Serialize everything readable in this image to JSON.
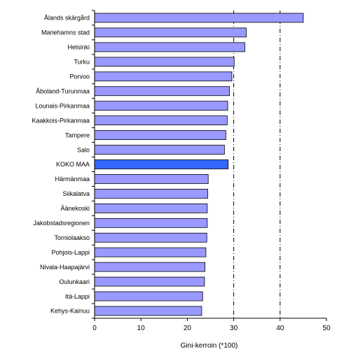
{
  "chart_data": {
    "type": "bar",
    "orientation": "horizontal",
    "categories": [
      "Ålands skärgård",
      "Mariehamns stad",
      "Helsinki",
      "Turku",
      "Porvoo",
      "Åboland-Turunmaa",
      "Lounais-Pirkanmaa",
      "Kaakkois-Pirkanmaa",
      "Tampere",
      "Salo",
      "KOKO MAA",
      "Härmänmaa",
      "Siikalatva",
      "Äänekoski",
      "Jakobstadsregionen",
      "Torniolaakso",
      "Pohjois-Lappi",
      "Nivala-Haapajärvi",
      "Oulunkaari",
      "Itä-Lappi",
      "Kehys-Kainuu"
    ],
    "values": [
      45.0,
      32.7,
      32.4,
      30.1,
      29.6,
      29.1,
      28.7,
      28.6,
      28.3,
      28.0,
      28.8,
      24.5,
      24.4,
      24.3,
      24.3,
      24.2,
      24.0,
      23.8,
      23.7,
      23.3,
      23.1
    ],
    "highlight_category": "KOKO MAA",
    "xlabel": "Gini-kerroin  (*100)",
    "ylabel": "",
    "title": "",
    "xlim": [
      0,
      50
    ],
    "x_ticks": [
      0,
      10,
      20,
      30,
      40,
      50
    ],
    "reference_lines": [
      30,
      40
    ],
    "grid": false,
    "legend": "none",
    "colors": {
      "bar_fill": "#9999ff",
      "highlight_fill": "#3366ff",
      "bar_stroke": "#000000",
      "axis": "#000000",
      "reference_line": "#000000"
    }
  }
}
